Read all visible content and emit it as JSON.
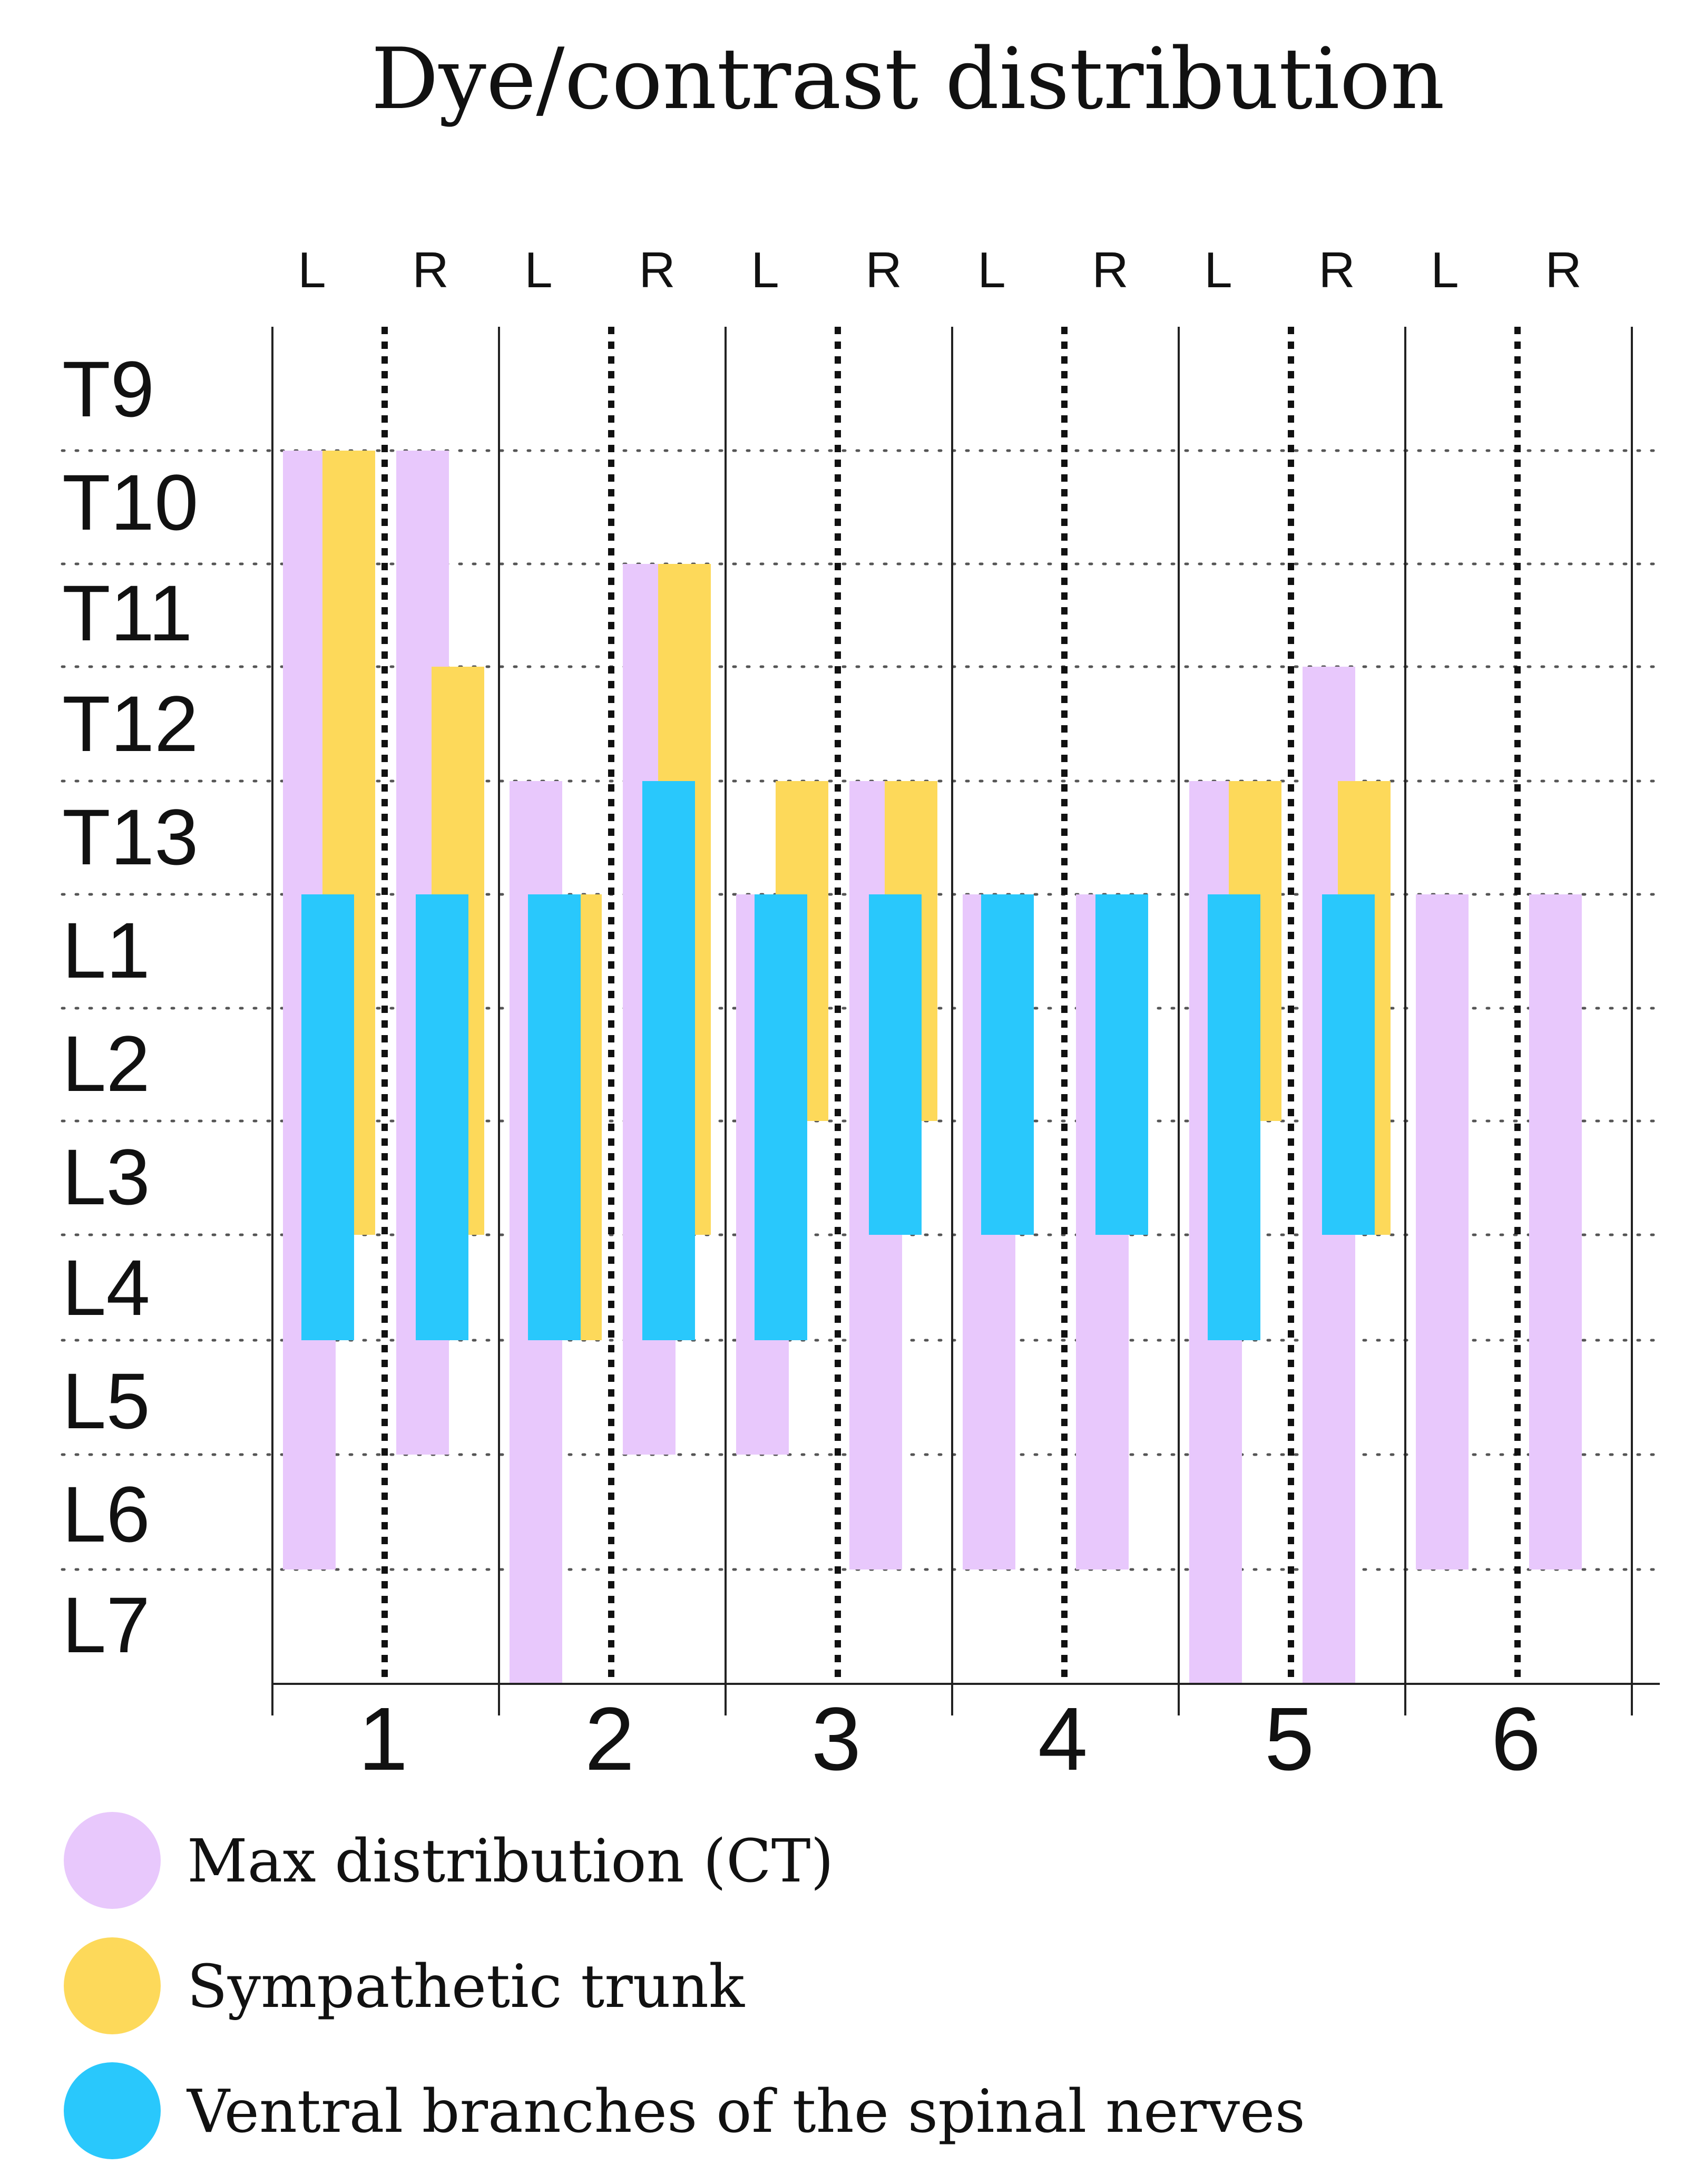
{
  "chart_data": {
    "type": "bar",
    "title": "Dye/contrast distribution",
    "levels": [
      "T9",
      "T10",
      "T11",
      "T12",
      "T13",
      "L1",
      "L2",
      "L3",
      "L4",
      "L5",
      "L6",
      "L7"
    ],
    "side_labels": [
      "L",
      "R"
    ],
    "dogs": [
      "1",
      "2",
      "3",
      "4",
      "5",
      "6"
    ],
    "series": [
      {
        "key": "ct",
        "name": "Max distribution (CT)",
        "color": "#e8c8fc",
        "ranges": [
          {
            "dog": "1",
            "side": "L",
            "from": "T10",
            "to": "L6"
          },
          {
            "dog": "1",
            "side": "R",
            "from": "T10",
            "to": "L5"
          },
          {
            "dog": "2",
            "side": "L",
            "from": "T13",
            "to": "L7"
          },
          {
            "dog": "2",
            "side": "R",
            "from": "T11",
            "to": "L5"
          },
          {
            "dog": "3",
            "side": "L",
            "from": "L1",
            "to": "L5"
          },
          {
            "dog": "3",
            "side": "R",
            "from": "T13",
            "to": "L6"
          },
          {
            "dog": "4",
            "side": "L",
            "from": "L1",
            "to": "L6"
          },
          {
            "dog": "4",
            "side": "R",
            "from": "L1",
            "to": "L6"
          },
          {
            "dog": "5",
            "side": "L",
            "from": "T13",
            "to": "L7"
          },
          {
            "dog": "5",
            "side": "R",
            "from": "T12",
            "to": "L7"
          },
          {
            "dog": "6",
            "side": "L",
            "from": "L1",
            "to": "L6"
          },
          {
            "dog": "6",
            "side": "R",
            "from": "L1",
            "to": "L6"
          }
        ]
      },
      {
        "key": "sym",
        "name": "Sympathetic trunk",
        "color": "#fdd95a",
        "ranges": [
          {
            "dog": "1",
            "side": "L",
            "from": "T10",
            "to": "L3"
          },
          {
            "dog": "1",
            "side": "R",
            "from": "T12",
            "to": "L3"
          },
          {
            "dog": "2",
            "side": "L",
            "from": "L1",
            "to": "L4"
          },
          {
            "dog": "2",
            "side": "R",
            "from": "T11",
            "to": "L3"
          },
          {
            "dog": "3",
            "side": "L",
            "from": "T13",
            "to": "L2"
          },
          {
            "dog": "3",
            "side": "R",
            "from": "T13",
            "to": "L2"
          },
          {
            "dog": "5",
            "side": "L",
            "from": "T13",
            "to": "L2"
          },
          {
            "dog": "5",
            "side": "R",
            "from": "T13",
            "to": "L3"
          }
        ]
      },
      {
        "key": "ven",
        "name": "Ventral branches of the spinal nerves",
        "color": "#29c8fc",
        "ranges": [
          {
            "dog": "1",
            "side": "L",
            "from": "L1",
            "to": "L4"
          },
          {
            "dog": "1",
            "side": "R",
            "from": "L1",
            "to": "L4"
          },
          {
            "dog": "2",
            "side": "L",
            "from": "L1",
            "to": "L4"
          },
          {
            "dog": "2",
            "side": "R",
            "from": "T13",
            "to": "L4"
          },
          {
            "dog": "3",
            "side": "L",
            "from": "L1",
            "to": "L4"
          },
          {
            "dog": "3",
            "side": "R",
            "from": "L1",
            "to": "L3"
          },
          {
            "dog": "4",
            "side": "L",
            "from": "L1",
            "to": "L3"
          },
          {
            "dog": "4",
            "side": "R",
            "from": "L1",
            "to": "L3"
          },
          {
            "dog": "5",
            "side": "L",
            "from": "L1",
            "to": "L4"
          },
          {
            "dog": "5",
            "side": "R",
            "from": "L1",
            "to": "L3"
          }
        ]
      }
    ]
  }
}
